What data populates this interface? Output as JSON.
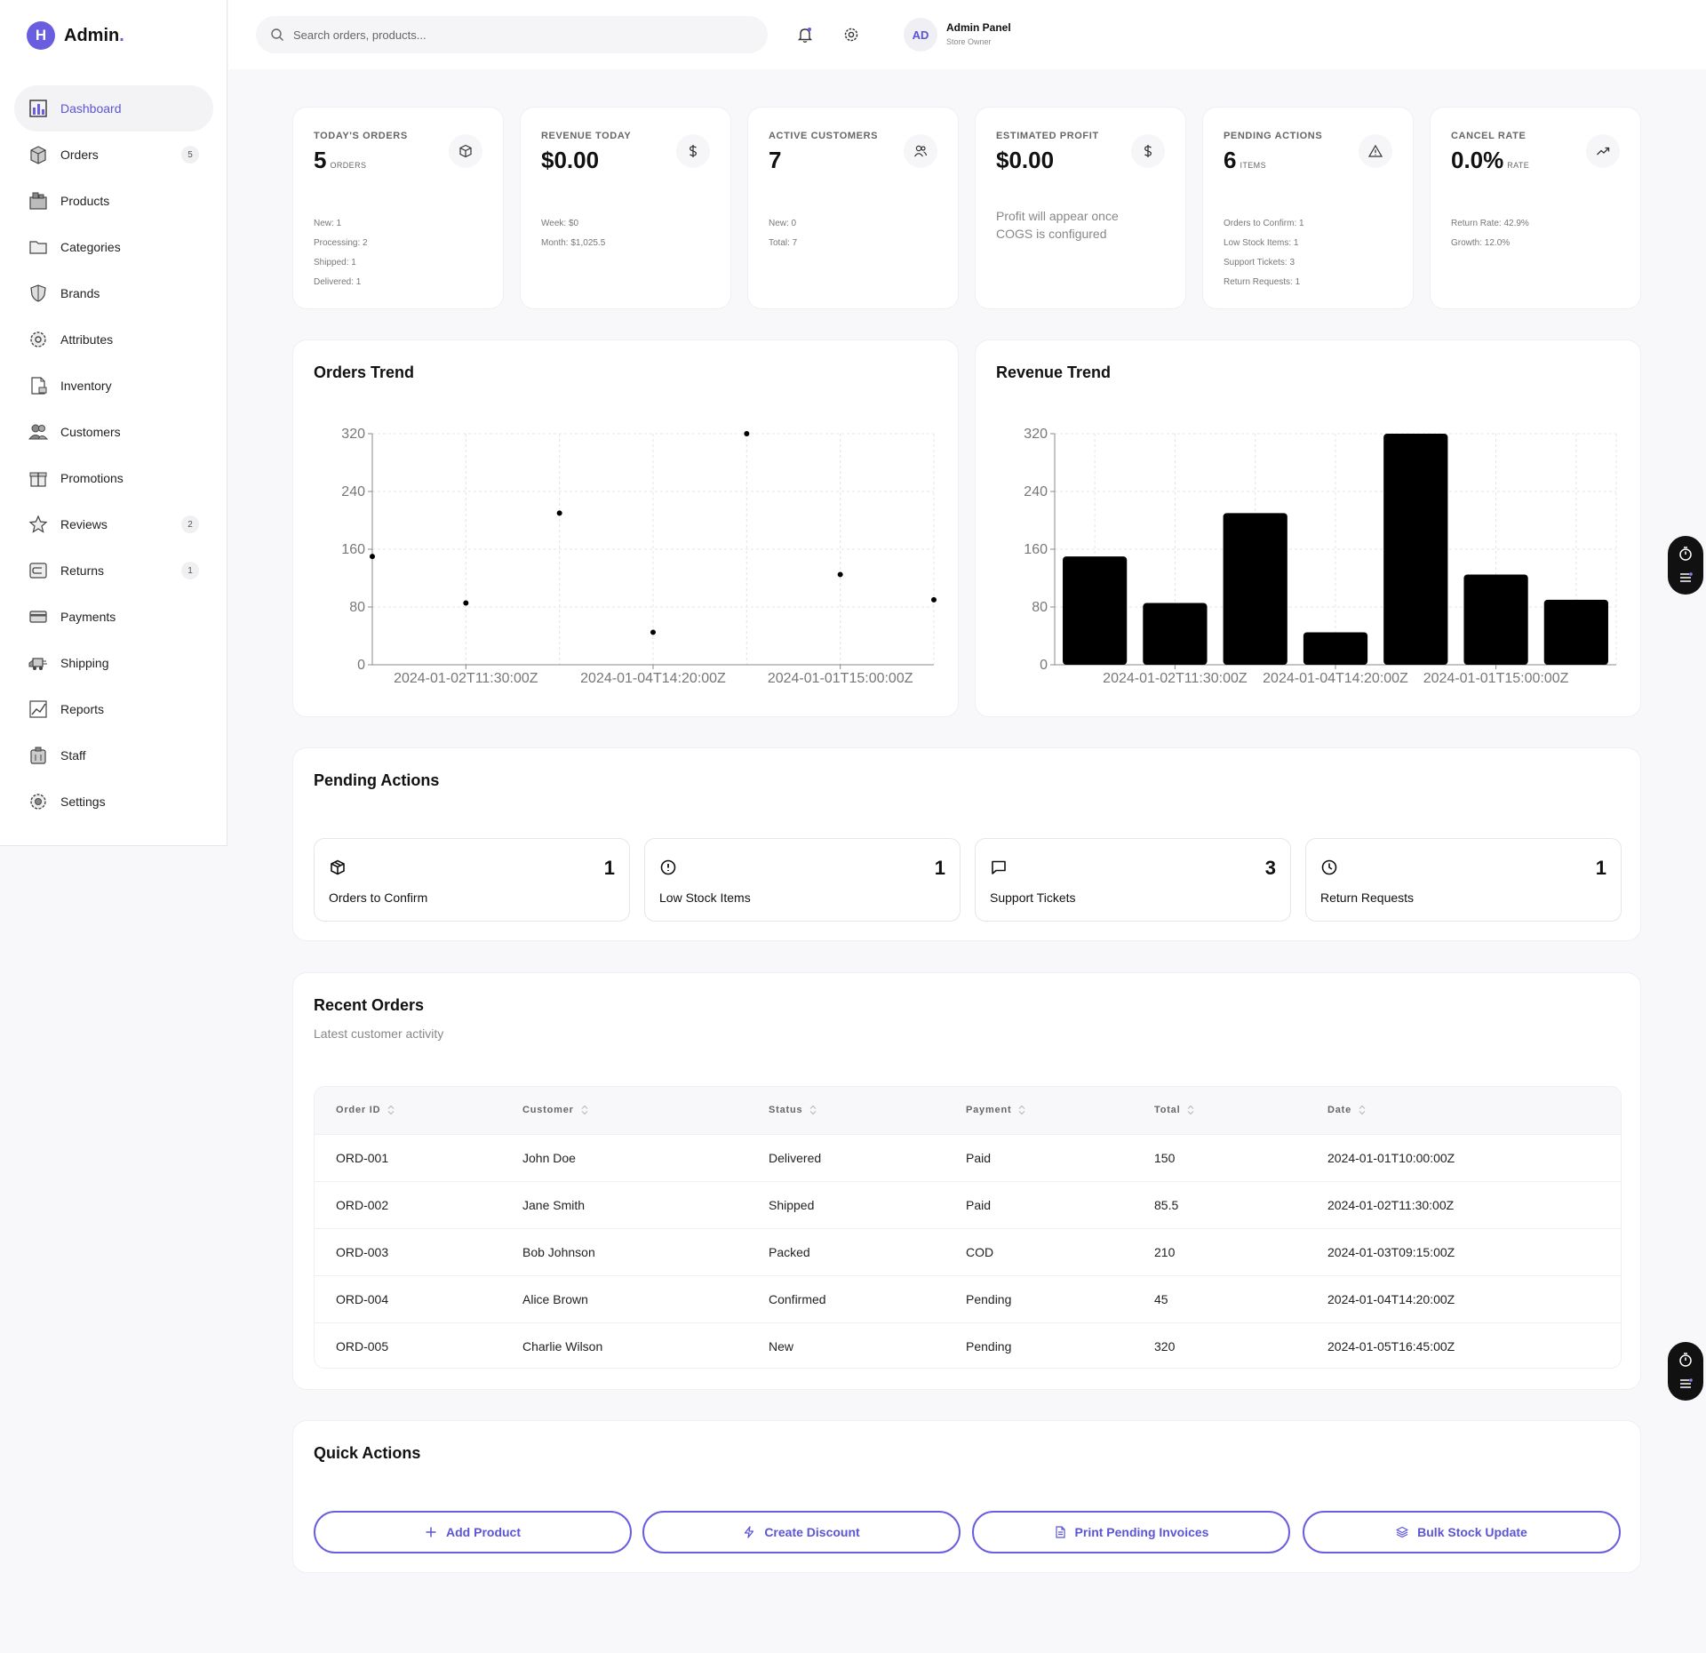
{
  "brand": {
    "badge": "H",
    "name": "Admin"
  },
  "sidebar": {
    "items": [
      {
        "label": "Dashboard",
        "icon": "chart-icon",
        "active": true,
        "badge": ""
      },
      {
        "label": "Orders",
        "icon": "box-icon",
        "badge": "5"
      },
      {
        "label": "Products",
        "icon": "products-icon",
        "badge": ""
      },
      {
        "label": "Categories",
        "icon": "folder-icon",
        "badge": ""
      },
      {
        "label": "Brands",
        "icon": "shield-icon",
        "badge": ""
      },
      {
        "label": "Attributes",
        "icon": "cog-icon",
        "badge": ""
      },
      {
        "label": "Inventory",
        "icon": "document-icon",
        "badge": ""
      },
      {
        "label": "Customers",
        "icon": "users-icon",
        "badge": ""
      },
      {
        "label": "Promotions",
        "icon": "gift-icon",
        "badge": ""
      },
      {
        "label": "Reviews",
        "icon": "star-icon",
        "badge": "2"
      },
      {
        "label": "Returns",
        "icon": "return-icon",
        "badge": "1"
      },
      {
        "label": "Payments",
        "icon": "card-icon",
        "badge": ""
      },
      {
        "label": "Shipping",
        "icon": "truck-icon",
        "badge": ""
      },
      {
        "label": "Reports",
        "icon": "report-icon",
        "badge": ""
      },
      {
        "label": "Staff",
        "icon": "staff-icon",
        "badge": ""
      },
      {
        "label": "Settings",
        "icon": "settings-icon",
        "badge": ""
      }
    ]
  },
  "header": {
    "search_placeholder": "Search orders, products...",
    "avatar": "AD",
    "user_name": "Admin Panel",
    "user_role": "Store Owner"
  },
  "stats": [
    {
      "label": "TODAY'S ORDERS",
      "value": "5",
      "unit": "ORDERS",
      "icon": "box-icon",
      "lines": [
        "New: 1",
        "Processing: 2",
        "Shipped: 1",
        "Delivered: 1"
      ]
    },
    {
      "label": "REVENUE TODAY",
      "value": "$0.00",
      "unit": "",
      "icon": "dollar-icon",
      "lines": [
        "Week: $0",
        "Month: $1,025.5"
      ]
    },
    {
      "label": "ACTIVE CUSTOMERS",
      "value": "7",
      "unit": "",
      "icon": "users-icon",
      "lines": [
        "New: 0",
        "Total: 7"
      ]
    },
    {
      "label": "ESTIMATED PROFIT",
      "value": "$0.00",
      "unit": "",
      "icon": "dollar-icon",
      "note": "Profit will appear once COGS is configured"
    },
    {
      "label": "PENDING ACTIONS",
      "value": "6",
      "unit": "ITEMS",
      "icon": "warning-icon",
      "lines": [
        "Orders to Confirm: 1",
        "Low Stock Items: 1",
        "Support Tickets: 3",
        "Return Requests: 1"
      ]
    },
    {
      "label": "CANCEL RATE",
      "value": "0.0%",
      "unit": "RATE",
      "icon": "trend-icon",
      "lines": [
        "Return Rate: 42.9%",
        "Growth: 12.0%"
      ]
    }
  ],
  "chart_data": [
    {
      "type": "scatter",
      "title": "Orders Trend",
      "x": [
        "2024-01-01T10:00:00Z",
        "2024-01-02T11:30:00Z",
        "2024-01-03T09:15:00Z",
        "2024-01-04T14:20:00Z",
        "2024-01-05T16:45:00Z",
        "2024-01-01T15:00:00Z",
        "2024-01-02T10:00:00Z"
      ],
      "values": [
        150,
        85.5,
        210,
        45,
        320,
        125,
        90
      ],
      "tick_labels": [
        "2024-01-02T11:30:00Z",
        "2024-01-04T14:20:00Z",
        "2024-01-01T15:00:00Z"
      ],
      "yticks": [
        0,
        80,
        160,
        240,
        320
      ],
      "ylim": [
        0,
        320
      ],
      "grid": true
    },
    {
      "type": "bar",
      "title": "Revenue Trend",
      "categories": [
        "2024-01-01T10:00:00Z",
        "2024-01-02T11:30:00Z",
        "2024-01-03T09:15:00Z",
        "2024-01-04T14:20:00Z",
        "2024-01-05T16:45:00Z",
        "2024-01-01T15:00:00Z",
        "2024-01-02T10:00:00Z"
      ],
      "values": [
        150,
        85.5,
        210,
        45,
        320,
        125,
        90
      ],
      "tick_labels": [
        "2024-01-02T11:30:00Z",
        "2024-01-04T14:20:00Z",
        "2024-01-01T15:00:00Z"
      ],
      "yticks": [
        0,
        80,
        160,
        240,
        320
      ],
      "ylim": [
        0,
        320
      ],
      "grid": true
    }
  ],
  "pending": {
    "title": "Pending Actions",
    "items": [
      {
        "label": "Orders to Confirm",
        "count": "1",
        "icon": "box-icon"
      },
      {
        "label": "Low Stock Items",
        "count": "1",
        "icon": "alert-circle-icon"
      },
      {
        "label": "Support Tickets",
        "count": "3",
        "icon": "message-icon"
      },
      {
        "label": "Return Requests",
        "count": "1",
        "icon": "clock-icon"
      }
    ]
  },
  "orders": {
    "title": "Recent Orders",
    "subtitle": "Latest customer activity",
    "columns": [
      "Order ID",
      "Customer",
      "Status",
      "Payment",
      "Total",
      "Date"
    ],
    "rows": [
      [
        "ORD-001",
        "John Doe",
        "Delivered",
        "Paid",
        "150",
        "2024-01-01T10:00:00Z"
      ],
      [
        "ORD-002",
        "Jane Smith",
        "Shipped",
        "Paid",
        "85.5",
        "2024-01-02T11:30:00Z"
      ],
      [
        "ORD-003",
        "Bob Johnson",
        "Packed",
        "COD",
        "210",
        "2024-01-03T09:15:00Z"
      ],
      [
        "ORD-004",
        "Alice Brown",
        "Confirmed",
        "Pending",
        "45",
        "2024-01-04T14:20:00Z"
      ],
      [
        "ORD-005",
        "Charlie Wilson",
        "New",
        "Pending",
        "320",
        "2024-01-05T16:45:00Z"
      ]
    ]
  },
  "quick": {
    "title": "Quick Actions",
    "buttons": [
      {
        "label": "Add Product",
        "icon": "plus-icon"
      },
      {
        "label": "Create Discount",
        "icon": "bolt-icon"
      },
      {
        "label": "Print Pending Invoices",
        "icon": "file-icon"
      },
      {
        "label": "Bulk Stock Update",
        "icon": "layers-icon"
      }
    ]
  },
  "colors": {
    "accent": "#6a5ee0",
    "accent_text": "#5b54d6",
    "chart": "#000000"
  }
}
